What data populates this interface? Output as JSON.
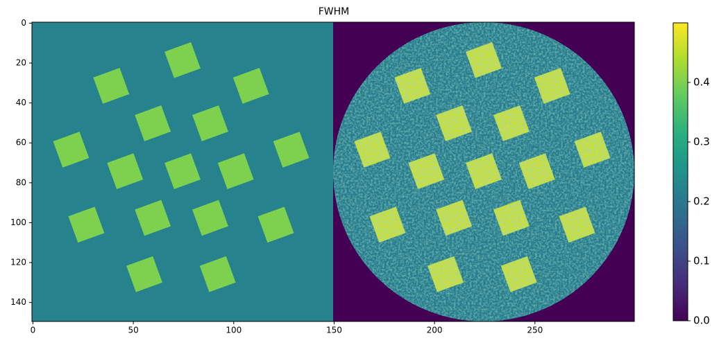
{
  "chart_data": {
    "type": "image",
    "title": "FWHM",
    "colormap": "viridis",
    "clim": [
      0,
      0.5
    ],
    "xlim": [
      -0.5,
      299.5
    ],
    "ylim": [
      149.5,
      -0.5
    ],
    "xticks": [
      0,
      50,
      100,
      150,
      200,
      250
    ],
    "yticks": [
      0,
      20,
      40,
      60,
      80,
      100,
      120,
      140
    ],
    "cticks": [
      {
        "value": 0,
        "label": "0.0"
      },
      0.1,
      0.2,
      0.3,
      0.4
    ],
    "background": [
      {
        "x0": -0.5,
        "x1": 149.5,
        "value": 0.22
      },
      {
        "x0": 149.5,
        "x1": 299.5,
        "value": 0
      }
    ],
    "disk": {
      "cx": 224.5,
      "cy": 74.5,
      "r": 75,
      "value": 0.21
    },
    "square_size": 14,
    "square_angle": -20,
    "square_values": [
      0.4,
      0.46
    ],
    "squares_left": [
      {
        "x": 74.5,
        "y": 18.5
      },
      {
        "x": 39,
        "y": 31.4
      },
      {
        "x": 108.6,
        "y": 31.4
      },
      {
        "x": 59.7,
        "y": 50.2
      },
      {
        "x": 88.3,
        "y": 50.2
      },
      {
        "x": 19,
        "y": 63.4
      },
      {
        "x": 45.9,
        "y": 74.2
      },
      {
        "x": 74.5,
        "y": 74.2
      },
      {
        "x": 101,
        "y": 74.2
      },
      {
        "x": 128.6,
        "y": 63.4
      },
      {
        "x": 26.6,
        "y": 101
      },
      {
        "x": 59.7,
        "y": 97.6
      },
      {
        "x": 88.3,
        "y": 97.6
      },
      {
        "x": 121,
        "y": 101
      },
      {
        "x": 55.5,
        "y": 125.8
      },
      {
        "x": 92,
        "y": 125.8
      }
    ],
    "squares_right": [
      {
        "x": 224.5,
        "y": 18.5
      },
      {
        "x": 189,
        "y": 31.4
      },
      {
        "x": 258.6,
        "y": 31.4
      },
      {
        "x": 209.7,
        "y": 50.2
      },
      {
        "x": 238.3,
        "y": 50.2
      },
      {
        "x": 169,
        "y": 63.4
      },
      {
        "x": 195.9,
        "y": 74.2
      },
      {
        "x": 224.5,
        "y": 74.2
      },
      {
        "x": 251,
        "y": 74.2
      },
      {
        "x": 278.6,
        "y": 63.4
      },
      {
        "x": 176.6,
        "y": 101
      },
      {
        "x": 209.7,
        "y": 97.6
      },
      {
        "x": 238.3,
        "y": 97.6
      },
      {
        "x": 271,
        "y": 101
      },
      {
        "x": 205.5,
        "y": 125.8
      },
      {
        "x": 242,
        "y": 125.8
      }
    ]
  }
}
